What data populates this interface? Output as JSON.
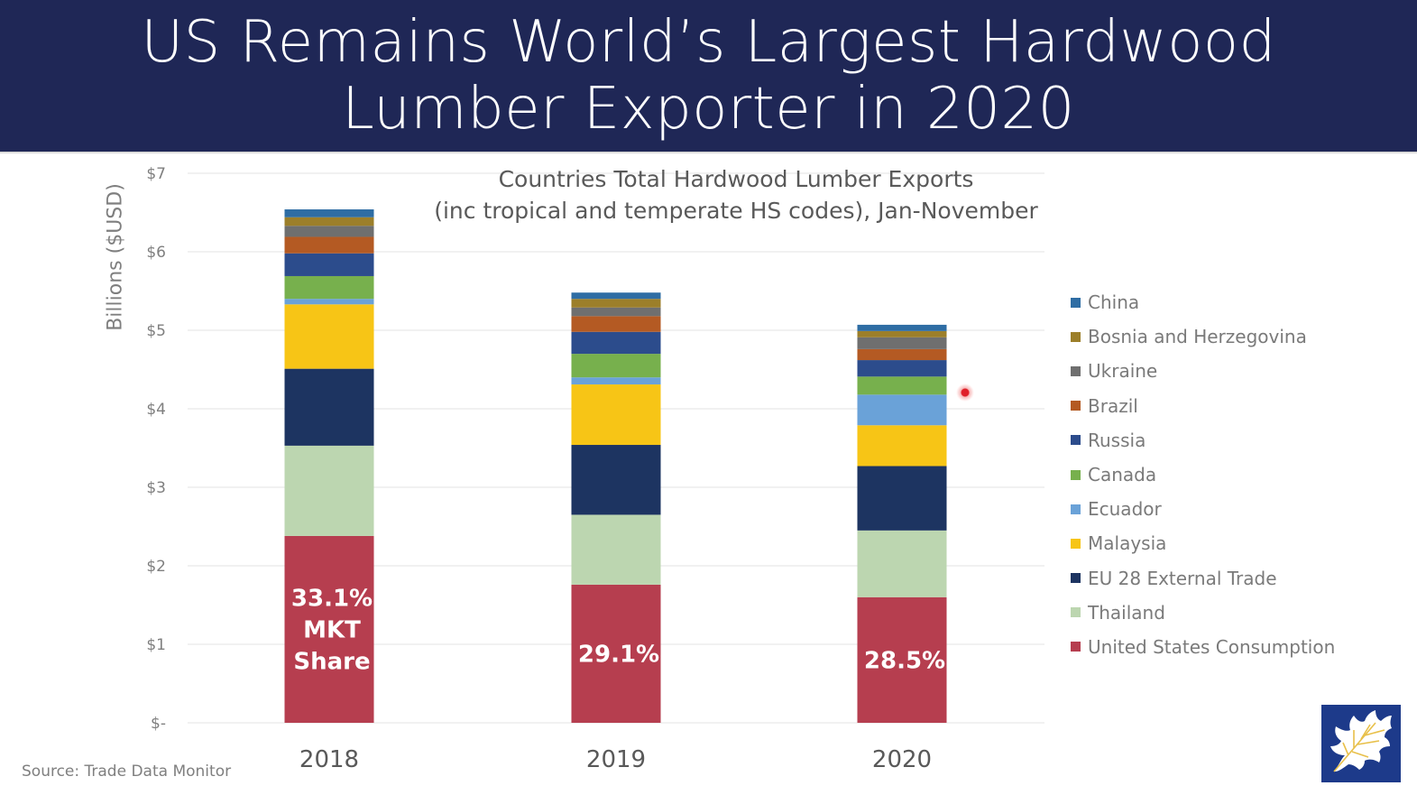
{
  "header": {
    "title_line1": "US Remains World’s Largest Hardwood",
    "title_line2": "Lumber Exporter in 2020"
  },
  "footer": {
    "source": "Source: Trade Data Monitor"
  },
  "logo": {
    "icon": "oak-leaf-icon"
  },
  "colors": {
    "header_bg": "#1f2756",
    "China": "#2e6da4",
    "Bosnia and Herzegovina": "#9c7f2a",
    "Ukraine": "#6f6f6f",
    "Brazil": "#b45a23",
    "Russia": "#2c4c8c",
    "Canada": "#77b04d",
    "Ecuador": "#6aa2d8",
    "Malaysia": "#f7c516",
    "EU 28 External Trade": "#1d3461",
    "Thailand": "#bcd6b0",
    "United States Consumption": "#b63e4f"
  },
  "chart_data": {
    "type": "bar",
    "stacked": true,
    "title": "Countries Total Hardwood Lumber Exports",
    "subtitle": "(inc tropical and temperate HS codes), Jan-November",
    "xlabel": "",
    "ylabel": "Billions ($USD)",
    "ylim": [
      0,
      7
    ],
    "yticks": [
      0,
      1,
      2,
      3,
      4,
      5,
      6,
      7
    ],
    "ytick_labels": [
      "$-",
      "$1",
      "$2",
      "$3",
      "$4",
      "$5",
      "$6",
      "$7"
    ],
    "grid": true,
    "legend_position": "right",
    "categories": [
      "2018",
      "2019",
      "2020"
    ],
    "series": [
      {
        "name": "United States Consumption",
        "values": [
          2.38,
          1.76,
          1.6
        ]
      },
      {
        "name": "Thailand",
        "values": [
          1.15,
          0.89,
          0.85
        ]
      },
      {
        "name": "EU 28 External Trade",
        "values": [
          0.98,
          0.89,
          0.82
        ]
      },
      {
        "name": "Malaysia",
        "values": [
          0.82,
          0.77,
          0.52
        ]
      },
      {
        "name": "Ecuador",
        "values": [
          0.07,
          0.09,
          0.39
        ]
      },
      {
        "name": "Canada",
        "values": [
          0.29,
          0.3,
          0.23
        ]
      },
      {
        "name": "Russia",
        "values": [
          0.29,
          0.28,
          0.21
        ]
      },
      {
        "name": "Brazil",
        "values": [
          0.21,
          0.2,
          0.14
        ]
      },
      {
        "name": "Ukraine",
        "values": [
          0.14,
          0.11,
          0.15
        ]
      },
      {
        "name": "Bosnia and Herzegovina",
        "values": [
          0.11,
          0.11,
          0.08
        ]
      },
      {
        "name": "China",
        "values": [
          0.1,
          0.08,
          0.08
        ]
      }
    ],
    "legend_order": [
      "China",
      "Bosnia and Herzegovina",
      "Ukraine",
      "Brazil",
      "Russia",
      "Canada",
      "Ecuador",
      "Malaysia",
      "EU 28 External Trade",
      "Thailand",
      "United States Consumption"
    ],
    "annotations": [
      {
        "category": "2018",
        "series": "United States Consumption",
        "lines": [
          "33.1%",
          "MKT",
          "Share"
        ]
      },
      {
        "category": "2019",
        "series": "United States Consumption",
        "lines": [
          "29.1%"
        ]
      },
      {
        "category": "2020",
        "series": "United States Consumption",
        "lines": [
          "28.5%"
        ]
      }
    ]
  }
}
